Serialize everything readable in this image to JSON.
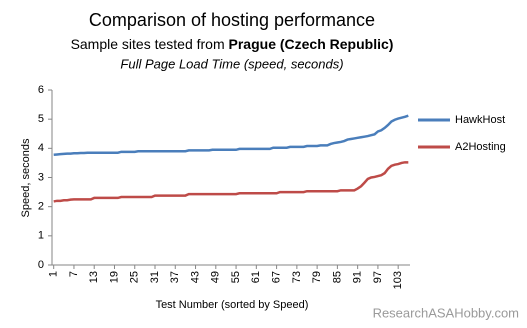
{
  "chart_data": {
    "type": "line",
    "title": "Comparison of hosting performance",
    "subtitle_prefix": "Sample sites tested from",
    "subtitle_location": "Prague (Czech Republic)",
    "subtitle2": "Full Page Load Time (speed, seconds)",
    "x_label": "Test Number (sorted by Speed)",
    "y_label": "Speed, seconds",
    "watermark": "ResearchASAHobby.com",
    "x": [
      1,
      2,
      3,
      4,
      5,
      6,
      7,
      8,
      9,
      10,
      11,
      12,
      13,
      14,
      15,
      16,
      17,
      18,
      19,
      20,
      21,
      22,
      23,
      24,
      25,
      26,
      27,
      28,
      29,
      30,
      31,
      32,
      33,
      34,
      35,
      36,
      37,
      38,
      39,
      40,
      41,
      42,
      43,
      44,
      45,
      46,
      47,
      48,
      49,
      50,
      51,
      52,
      53,
      54,
      55,
      56,
      57,
      58,
      59,
      60,
      61,
      62,
      63,
      64,
      65,
      66,
      67,
      68,
      69,
      70,
      71,
      72,
      73,
      74,
      75,
      76,
      77,
      78,
      79,
      80,
      81,
      82,
      83,
      84,
      85,
      86,
      87,
      88,
      89,
      90,
      91,
      92,
      93,
      94,
      95,
      96,
      97,
      98,
      99,
      100,
      101,
      102,
      103,
      104,
      105,
      106
    ],
    "xlim": [
      0.5,
      106.5
    ],
    "xticks": [
      1,
      7,
      13,
      19,
      25,
      31,
      37,
      43,
      49,
      55,
      61,
      67,
      73,
      79,
      85,
      91,
      97,
      103
    ],
    "ylim": [
      0,
      6
    ],
    "yticks": [
      0,
      1,
      2,
      3,
      4,
      5,
      6
    ],
    "grid": false,
    "legend": "right",
    "series": [
      {
        "name": "HawkHost",
        "color": "#4a7ebb",
        "values": [
          3.78,
          3.79,
          3.8,
          3.81,
          3.82,
          3.82,
          3.83,
          3.83,
          3.84,
          3.84,
          3.85,
          3.85,
          3.85,
          3.85,
          3.85,
          3.85,
          3.85,
          3.85,
          3.85,
          3.85,
          3.88,
          3.88,
          3.88,
          3.88,
          3.88,
          3.9,
          3.9,
          3.9,
          3.9,
          3.9,
          3.9,
          3.9,
          3.9,
          3.9,
          3.9,
          3.9,
          3.9,
          3.9,
          3.9,
          3.9,
          3.93,
          3.93,
          3.93,
          3.93,
          3.93,
          3.93,
          3.93,
          3.95,
          3.95,
          3.95,
          3.95,
          3.95,
          3.95,
          3.95,
          3.95,
          3.98,
          3.98,
          3.98,
          3.98,
          3.98,
          3.98,
          3.98,
          3.98,
          3.98,
          3.98,
          4.02,
          4.02,
          4.02,
          4.02,
          4.02,
          4.05,
          4.05,
          4.05,
          4.05,
          4.05,
          4.08,
          4.08,
          4.08,
          4.08,
          4.1,
          4.1,
          4.1,
          4.15,
          4.18,
          4.2,
          4.22,
          4.25,
          4.3,
          4.32,
          4.34,
          4.36,
          4.38,
          4.4,
          4.42,
          4.45,
          4.48,
          4.58,
          4.62,
          4.7,
          4.8,
          4.92,
          4.98,
          5.02,
          5.05,
          5.08,
          5.12
        ]
      },
      {
        "name": "A2Hosting",
        "color": "#be4b48",
        "values": [
          2.18,
          2.2,
          2.2,
          2.22,
          2.22,
          2.24,
          2.25,
          2.25,
          2.25,
          2.25,
          2.25,
          2.25,
          2.3,
          2.3,
          2.3,
          2.3,
          2.3,
          2.3,
          2.3,
          2.3,
          2.33,
          2.33,
          2.33,
          2.33,
          2.33,
          2.33,
          2.33,
          2.33,
          2.33,
          2.33,
          2.38,
          2.38,
          2.38,
          2.38,
          2.38,
          2.38,
          2.38,
          2.38,
          2.38,
          2.38,
          2.43,
          2.43,
          2.43,
          2.43,
          2.43,
          2.43,
          2.43,
          2.43,
          2.43,
          2.43,
          2.43,
          2.43,
          2.43,
          2.43,
          2.43,
          2.46,
          2.46,
          2.46,
          2.46,
          2.46,
          2.46,
          2.46,
          2.46,
          2.46,
          2.46,
          2.46,
          2.46,
          2.5,
          2.5,
          2.5,
          2.5,
          2.5,
          2.5,
          2.5,
          2.5,
          2.53,
          2.53,
          2.53,
          2.53,
          2.53,
          2.53,
          2.53,
          2.53,
          2.53,
          2.53,
          2.56,
          2.56,
          2.56,
          2.56,
          2.56,
          2.62,
          2.7,
          2.82,
          2.95,
          3.0,
          3.02,
          3.05,
          3.08,
          3.15,
          3.3,
          3.4,
          3.44,
          3.46,
          3.5,
          3.52,
          3.52
        ]
      }
    ]
  }
}
